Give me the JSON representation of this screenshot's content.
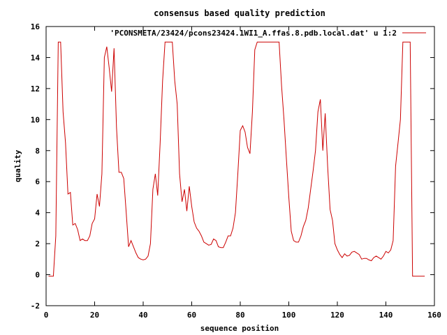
{
  "chart_data": {
    "type": "line",
    "title": "consensus based quality prediction",
    "xlabel": "sequence position",
    "ylabel": "quality",
    "xlim": [
      0,
      160
    ],
    "ylim": [
      -2,
      16
    ],
    "xticks": [
      "0",
      "20",
      "40",
      "60",
      "80",
      "100",
      "120",
      "140",
      "160"
    ],
    "yticks": [
      "-2",
      "0",
      "2",
      "4",
      "6",
      "8",
      "10",
      "12",
      "14",
      "16"
    ],
    "legend_position": "top-right",
    "grid": false,
    "series": [
      {
        "name": "'PCONSMETA/23424/pcons23424.1WI1_A.ffas.8.pdb.local.dat' u 1:2",
        "color": "#cc0000",
        "x": [
          1,
          2,
          3,
          4,
          5,
          6,
          7,
          8,
          9,
          10,
          11,
          12,
          13,
          14,
          15,
          16,
          17,
          18,
          19,
          20,
          21,
          22,
          23,
          24,
          25,
          26,
          27,
          28,
          29,
          30,
          31,
          32,
          33,
          34,
          35,
          36,
          37,
          38,
          39,
          40,
          41,
          42,
          43,
          44,
          45,
          46,
          47,
          48,
          49,
          50,
          51,
          52,
          53,
          54,
          55,
          56,
          57,
          58,
          59,
          60,
          61,
          62,
          63,
          64,
          65,
          66,
          67,
          68,
          69,
          70,
          71,
          72,
          73,
          74,
          75,
          76,
          77,
          78,
          79,
          80,
          81,
          82,
          83,
          84,
          85,
          86,
          87,
          88,
          89,
          90,
          91,
          92,
          93,
          94,
          95,
          96,
          97,
          98,
          99,
          100,
          101,
          102,
          103,
          104,
          105,
          106,
          107,
          108,
          109,
          110,
          111,
          112,
          113,
          114,
          115,
          116,
          117,
          118,
          119,
          120,
          121,
          122,
          123,
          124,
          125,
          126,
          127,
          128,
          129,
          130,
          131,
          132,
          133,
          134,
          135,
          136,
          137,
          138,
          139,
          140,
          141,
          142,
          143,
          144,
          145,
          146,
          147,
          148,
          149,
          150,
          151,
          152,
          153,
          154,
          155,
          156
        ],
        "y": [
          -0.1,
          -0.1,
          -0.1,
          2.5,
          15.0,
          15.0,
          10.5,
          8.5,
          5.2,
          5.3,
          3.2,
          3.3,
          2.9,
          2.2,
          2.3,
          2.2,
          2.2,
          2.5,
          3.3,
          3.6,
          5.2,
          4.4,
          6.5,
          14.0,
          14.7,
          13.3,
          11.8,
          14.6,
          9.5,
          6.6,
          6.6,
          6.2,
          4.0,
          1.8,
          2.2,
          1.8,
          1.4,
          1.1,
          1.0,
          0.95,
          1.0,
          1.2,
          2.0,
          5.5,
          6.5,
          5.1,
          8.5,
          12.5,
          15.0,
          15.0,
          15.0,
          15.0,
          12.5,
          11.0,
          6.5,
          4.7,
          5.5,
          4.1,
          5.7,
          4.4,
          3.4,
          3.0,
          2.8,
          2.5,
          2.1,
          2.0,
          1.9,
          1.95,
          2.3,
          2.2,
          1.8,
          1.75,
          1.75,
          2.1,
          2.5,
          2.5,
          3.0,
          4.0,
          6.5,
          9.3,
          9.6,
          9.2,
          8.2,
          7.8,
          10.5,
          14.5,
          15.0,
          15.0,
          15.0,
          15.0,
          15.0,
          15.0,
          15.0,
          15.0,
          15.0,
          15.0,
          12.2,
          10.0,
          7.5,
          5.0,
          2.8,
          2.2,
          2.1,
          2.1,
          2.5,
          3.1,
          3.5,
          4.3,
          5.5,
          6.7,
          8.0,
          10.5,
          11.3,
          8.0,
          10.4,
          7.0,
          4.2,
          3.5,
          2.0,
          1.6,
          1.3,
          1.1,
          1.35,
          1.2,
          1.25,
          1.45,
          1.5,
          1.4,
          1.3,
          1.0,
          1.05,
          1.05,
          0.95,
          0.9,
          1.1,
          1.2,
          1.1,
          1.0,
          1.2,
          1.5,
          1.4,
          1.6,
          2.2,
          7.0,
          8.5,
          10.0,
          15.0,
          15.0,
          15.0,
          15.0,
          -0.1,
          -0.1,
          -0.1,
          -0.1,
          -0.1,
          -0.1
        ]
      }
    ]
  }
}
